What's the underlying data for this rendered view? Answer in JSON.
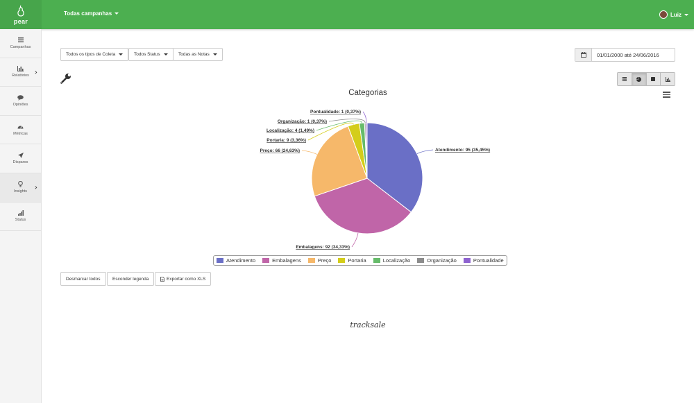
{
  "app": {
    "logo_text": "pear",
    "campaign_selector": "Todas campanhas",
    "user_name": "Luiz"
  },
  "sidebar": {
    "items": [
      {
        "label": "Campanhas",
        "icon": "list-icon",
        "has_chevron": false
      },
      {
        "label": "Relatórios",
        "icon": "bar-chart-icon",
        "has_chevron": true
      },
      {
        "label": "Opiniões",
        "icon": "chat-bubble-icon",
        "has_chevron": false
      },
      {
        "label": "Métricas",
        "icon": "dashboard-icon",
        "has_chevron": false
      },
      {
        "label": "Disparos",
        "icon": "paper-plane-icon",
        "has_chevron": false
      },
      {
        "label": "Insights",
        "icon": "lightbulb-icon",
        "has_chevron": true,
        "active": true
      },
      {
        "label": "Status",
        "icon": "signal-icon",
        "has_chevron": false
      }
    ]
  },
  "filters": {
    "collection_type": "Todos os tipos de Coleta",
    "status": "Todos Status",
    "notes": "Todas as Notas",
    "date_range": "01/01/2000 até 24/06/2016"
  },
  "view_toggle": {
    "options": [
      "list-view-icon",
      "pie-chart-icon",
      "stop-icon",
      "bar-chart-icon"
    ],
    "active": "pie-chart-icon"
  },
  "chart_data": {
    "type": "pie",
    "title": "Categorias",
    "categories": [
      "Atendimento",
      "Embalagens",
      "Preço",
      "Portaria",
      "Localização",
      "Organização",
      "Pontualidade"
    ],
    "values": [
      95,
      92,
      66,
      9,
      4,
      1,
      1
    ],
    "percent_labels": [
      "35,45%",
      "34,33%",
      "24,63%",
      "3,36%",
      "1,49%",
      "0,37%",
      "0,37%"
    ],
    "slice_labels": [
      "Atendimento: 95 (35,45%)",
      "Embalagens: 92 (34,33%)",
      "Preço: 66 (24,63%)",
      "Portaria: 9 (3,36%)",
      "Localização: 4 (1,49%)",
      "Organização: 1 (0,37%)",
      "Pontualidade: 1 (0,37%)"
    ],
    "colors": [
      "#6a6fc6",
      "#c065a8",
      "#f6b86a",
      "#d4cd1a",
      "#66bb6a",
      "#8c8c8c",
      "#8e62d0"
    ],
    "legend_position": "bottom"
  },
  "actions": {
    "unselect_all": "Desmarcar todos",
    "hide_legend": "Esconder legenda",
    "export_xls": "Exportar como XLS"
  },
  "footer": {
    "brand": "tracksale"
  }
}
